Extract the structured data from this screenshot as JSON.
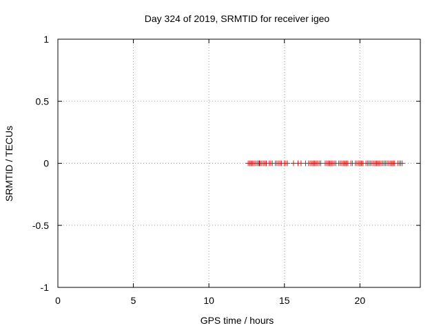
{
  "chart_data": {
    "type": "scatter",
    "title": "Day 324 of 2019, SRMTID for receiver igeo",
    "xlabel": "GPS time / hours",
    "ylabel": "SRMTID / TECUs",
    "xlim": [
      0,
      24
    ],
    "ylim": [
      -1,
      1
    ],
    "xticks": [
      0,
      5,
      10,
      15,
      20
    ],
    "xtick_labels": [
      "0",
      "5",
      "10",
      "15",
      "20"
    ],
    "yticks": [
      1,
      0.5,
      0,
      -0.5,
      -1
    ],
    "ytick_labels": [
      "1",
      "0.5",
      "0",
      "-0.5",
      "-1"
    ],
    "grid": true,
    "marker": "plus",
    "color": "#ff0000",
    "series": [
      {
        "x": [
          12.6,
          12.7,
          12.8,
          12.9,
          13.0,
          13.1,
          13.2,
          13.3,
          13.35,
          13.4,
          13.5,
          13.6,
          13.7,
          13.8,
          14.0,
          14.1,
          14.2,
          14.4,
          14.5,
          14.6,
          14.7,
          14.8,
          15.0,
          15.1,
          15.2,
          15.6,
          15.9,
          16.1,
          16.4,
          16.6,
          16.7,
          16.8,
          16.9,
          17.0,
          17.1,
          17.2,
          17.3,
          17.4,
          17.7,
          17.8,
          17.9,
          18.0,
          18.1,
          18.2,
          18.3,
          18.4,
          18.6,
          18.7,
          18.8,
          18.9,
          19.0,
          19.1,
          19.2,
          19.4,
          19.5,
          19.7,
          19.8,
          19.9,
          20.0,
          20.1,
          20.2,
          20.4,
          20.5,
          20.6,
          20.7,
          20.8,
          20.9,
          21.0,
          21.1,
          21.2,
          21.3,
          21.4,
          21.5,
          21.6,
          21.7,
          21.8,
          21.9,
          22.0,
          22.1,
          22.2,
          22.3,
          22.5,
          22.6,
          22.7,
          22.8
        ],
        "y": [
          0,
          0,
          0,
          0,
          0,
          0,
          0,
          0,
          0,
          0,
          0,
          0,
          0,
          0,
          0,
          0,
          0,
          0,
          0,
          0,
          0,
          0,
          0,
          0,
          0,
          0,
          0,
          0,
          0,
          0,
          0,
          0,
          0,
          0,
          0,
          0,
          0,
          0,
          0,
          0,
          0,
          0,
          0,
          0,
          0,
          0,
          0,
          0,
          0,
          0,
          0,
          0,
          0,
          0,
          0,
          0,
          0,
          0,
          0,
          0,
          0,
          0,
          0,
          0,
          0,
          0,
          0,
          0,
          0,
          0,
          0,
          0,
          0,
          0,
          0,
          0,
          0,
          0,
          0,
          0,
          0,
          0,
          0,
          0,
          0
        ]
      }
    ]
  }
}
